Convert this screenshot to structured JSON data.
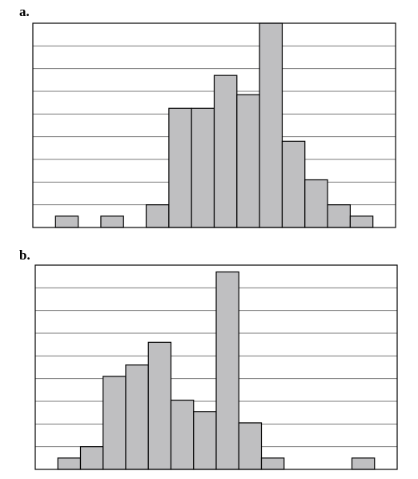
{
  "panels": [
    {
      "label": "a."
    },
    {
      "label": "b."
    }
  ],
  "colors": {
    "bar_fill": "#bfbfc1",
    "bar_stroke": "#000000",
    "grid": "#7a7a7a"
  },
  "chart_data": [
    {
      "type": "bar",
      "panel": "a.",
      "bins": 16,
      "values": [
        0,
        1,
        0,
        1,
        0,
        2,
        10.5,
        10.5,
        13.4,
        11.7,
        18,
        7.6,
        4.2,
        2,
        1,
        0
      ],
      "ylim": [
        0,
        18
      ],
      "grid": true,
      "gridlines": 9
    },
    {
      "type": "bar",
      "panel": "b.",
      "bins": 16,
      "values": [
        0,
        1,
        2,
        8.2,
        9.2,
        11.2,
        6.1,
        5.1,
        17.4,
        4.1,
        1,
        0,
        0,
        0,
        1,
        0
      ],
      "ylim": [
        0,
        18
      ],
      "grid": true,
      "gridlines": 9
    }
  ]
}
